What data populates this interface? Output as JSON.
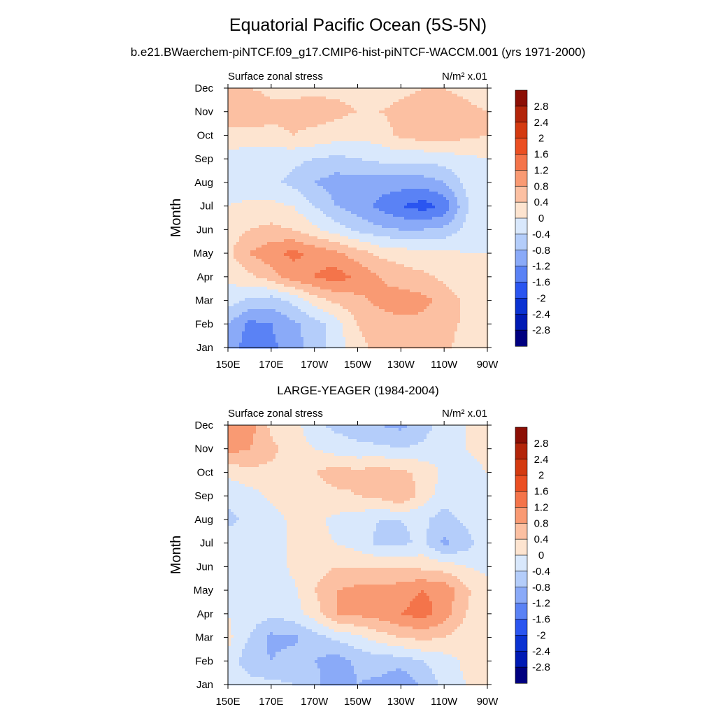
{
  "figure": {
    "title": "Equatorial Pacific Ocean (5S-5N)",
    "subtitle": "b.e21.BWaerchem-piNTCF.f09_g17.CMIP6-hist-piNTCF-WACCM.001 (yrs 1971-2000)"
  },
  "chart_data": [
    {
      "type": "heatmap",
      "panel_title": "",
      "left_label": "Surface zonal stress",
      "units_label": "N/m² x.01",
      "ylabel": "Month",
      "xlabel": "",
      "x": [
        150,
        160,
        170,
        180,
        190,
        200,
        210,
        220,
        230,
        240,
        250,
        260,
        270
      ],
      "x_ticks": [
        "150E",
        "170E",
        "170W",
        "150W",
        "130W",
        "110W",
        "90W"
      ],
      "x_tick_values": [
        150,
        170,
        190,
        210,
        230,
        250,
        270
      ],
      "y_ticks": [
        "Jan",
        "Feb",
        "Mar",
        "Apr",
        "May",
        "Jun",
        "Jul",
        "Aug",
        "Sep",
        "Oct",
        "Nov",
        "Dec"
      ],
      "xlim": [
        150,
        270
      ],
      "ylim": [
        1,
        12
      ],
      "z": [
        [
          -1.0,
          -1.4,
          -1.3,
          -1.0,
          -0.6,
          -0.2,
          0.3,
          0.5,
          0.6,
          0.6,
          0.5,
          0.2,
          0.0
        ],
        [
          -0.8,
          -1.3,
          -1.2,
          -0.9,
          -0.6,
          -0.2,
          0.4,
          0.6,
          0.7,
          0.7,
          0.6,
          0.3,
          0.0
        ],
        [
          -0.2,
          -0.5,
          -0.6,
          -0.3,
          0.2,
          0.5,
          0.7,
          0.9,
          1.0,
          0.9,
          0.7,
          0.3,
          0.0
        ],
        [
          0.1,
          0.3,
          0.6,
          1.0,
          1.2,
          1.4,
          1.1,
          0.8,
          0.6,
          0.5,
          0.3,
          0.0,
          0.0
        ],
        [
          0.3,
          0.8,
          1.1,
          1.3,
          1.1,
          0.9,
          0.6,
          0.3,
          0.2,
          0.1,
          0.1,
          0.0,
          0.0
        ],
        [
          0.2,
          0.4,
          0.5,
          0.4,
          0.1,
          -0.2,
          -0.5,
          -0.7,
          -0.8,
          -0.8,
          -0.7,
          -0.3,
          0.0
        ],
        [
          0.0,
          0.1,
          0.1,
          0.0,
          -0.4,
          -0.8,
          -1.0,
          -1.3,
          -1.6,
          -1.8,
          -1.5,
          -0.5,
          0.0
        ],
        [
          -0.2,
          -0.3,
          -0.3,
          -0.5,
          -0.8,
          -1.0,
          -1.0,
          -1.0,
          -1.0,
          -1.0,
          -0.8,
          -0.3,
          0.0
        ],
        [
          -0.2,
          -0.2,
          -0.3,
          -0.3,
          -0.4,
          -0.5,
          -0.4,
          -0.3,
          -0.3,
          -0.3,
          -0.2,
          -0.1,
          0.0
        ],
        [
          0.3,
          0.2,
          0.3,
          0.4,
          0.3,
          0.2,
          0.1,
          0.2,
          0.5,
          0.6,
          0.6,
          0.5,
          0.4
        ],
        [
          0.6,
          0.8,
          0.5,
          0.5,
          0.6,
          0.5,
          0.4,
          0.4,
          0.5,
          0.6,
          0.6,
          0.5,
          0.4
        ],
        [
          0.4,
          0.4,
          0.3,
          0.3,
          0.3,
          0.3,
          0.3,
          0.2,
          0.3,
          0.4,
          0.4,
          0.3,
          0.2
        ]
      ]
    },
    {
      "type": "heatmap",
      "panel_title": "LARGE-YEAGER (1984-2004)",
      "left_label": "Surface zonal stress",
      "units_label": "N/m² x.01",
      "ylabel": "Month",
      "xlabel": "",
      "x": [
        150,
        160,
        170,
        180,
        190,
        200,
        210,
        220,
        230,
        240,
        250,
        260,
        270
      ],
      "x_ticks": [
        "150E",
        "170E",
        "170W",
        "150W",
        "130W",
        "110W",
        "90W"
      ],
      "x_tick_values": [
        150,
        170,
        190,
        210,
        230,
        250,
        270
      ],
      "y_ticks": [
        "Jan",
        "Feb",
        "Mar",
        "Apr",
        "May",
        "Jun",
        "Jul",
        "Aug",
        "Sep",
        "Oct",
        "Nov",
        "Dec"
      ],
      "xlim": [
        150,
        270
      ],
      "ylim": [
        1,
        12
      ],
      "z": [
        [
          0.0,
          -0.2,
          -0.3,
          -0.4,
          -0.6,
          -1.2,
          -0.8,
          -0.9,
          -1.2,
          -0.7,
          -0.3,
          0.0,
          0.2
        ],
        [
          -0.1,
          -0.7,
          -0.8,
          -0.6,
          -0.8,
          -1.0,
          -0.7,
          -0.6,
          -0.6,
          -0.4,
          -0.2,
          0.1,
          0.2
        ],
        [
          0.1,
          -0.4,
          -0.9,
          -0.9,
          -0.6,
          -0.3,
          -0.1,
          0.2,
          0.4,
          0.5,
          0.4,
          0.2,
          0.1
        ],
        [
          0.0,
          -0.2,
          -0.3,
          -0.2,
          0.2,
          0.8,
          0.9,
          1.0,
          1.2,
          1.4,
          1.0,
          0.4,
          0.1
        ],
        [
          0.0,
          -0.1,
          -0.2,
          -0.1,
          0.4,
          0.8,
          0.9,
          0.9,
          1.0,
          1.2,
          1.1,
          0.5,
          0.1
        ],
        [
          -0.1,
          -0.2,
          -0.3,
          0.1,
          0.2,
          0.4,
          0.4,
          0.4,
          0.4,
          0.3,
          0.2,
          0.0,
          -0.1
        ],
        [
          -0.2,
          -0.4,
          -0.2,
          0.1,
          0.1,
          0.0,
          -0.2,
          -0.5,
          -0.5,
          -0.3,
          -0.9,
          -0.6,
          -0.1
        ],
        [
          -0.5,
          -0.3,
          -0.2,
          0.1,
          0.1,
          -0.1,
          -0.2,
          -0.4,
          -0.4,
          -0.3,
          -0.6,
          -0.3,
          0.0
        ],
        [
          -0.3,
          -0.2,
          0.1,
          0.2,
          0.2,
          0.3,
          0.4,
          0.5,
          0.8,
          0.2,
          -0.2,
          -0.1,
          0.0
        ],
        [
          0.1,
          0.3,
          0.3,
          0.3,
          0.4,
          0.6,
          0.5,
          0.6,
          0.5,
          0.3,
          -0.1,
          -0.2,
          0.0
        ],
        [
          1.0,
          0.8,
          0.5,
          0.2,
          0.0,
          -0.2,
          -0.3,
          -0.3,
          -0.4,
          -0.3,
          -0.1,
          0.0,
          0.2
        ],
        [
          1.2,
          1.0,
          0.3,
          0.2,
          -0.3,
          -0.5,
          -0.6,
          -0.8,
          -0.9,
          -0.6,
          -0.2,
          0.0,
          0.1
        ]
      ]
    }
  ],
  "colorbar": {
    "labels": [
      "2.8",
      "2.4",
      "2",
      "1.6",
      "1.2",
      "0.8",
      "0.4",
      "0",
      "-0.4",
      "-0.8",
      "-1.2",
      "-1.6",
      "-2",
      "-2.4",
      "-2.8"
    ],
    "levels": [
      -2.8,
      -2.4,
      -2.0,
      -1.6,
      -1.2,
      -0.8,
      -0.4,
      0.0,
      0.4,
      0.8,
      1.2,
      1.6,
      2.0,
      2.4,
      2.8
    ],
    "colors": [
      "#000080",
      "#001ab4",
      "#0a32d2",
      "#2a55f0",
      "#5a82f5",
      "#8aaaf8",
      "#b4cdfa",
      "#d9e8fc",
      "#fde4d0",
      "#fcc0a2",
      "#f99a73",
      "#f4744a",
      "#eb4f22",
      "#d43a10",
      "#b3250a",
      "#8c0f05"
    ]
  }
}
